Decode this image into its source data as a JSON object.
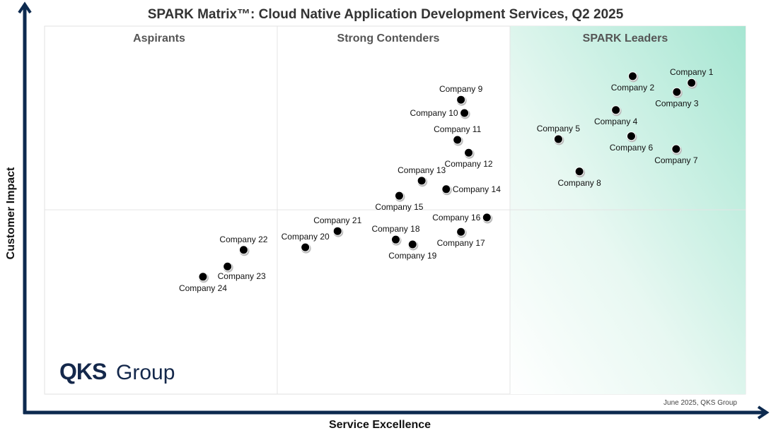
{
  "chart_data": {
    "type": "scatter",
    "title": "SPARK Matrix™: Cloud Native Application Development Services, Q2 2025",
    "xlabel": "Service Excellence",
    "ylabel": "Customer Impact",
    "xlim": [
      0,
      100
    ],
    "ylim": [
      0,
      100
    ],
    "grid": false,
    "quadrants": [
      "Aspirants",
      "Strong Contenders",
      "SPARK Leaders"
    ],
    "credit": "June 2025, QKS Group",
    "logo": "QKS Group",
    "colors": {
      "axis": "#0d2a4f",
      "leaders_fill": "#a6e6d2",
      "point": "#000000",
      "logo": "#14284b"
    },
    "points": [
      {
        "name": "Company 1",
        "x": 92.3,
        "y": 84.6,
        "label": "above"
      },
      {
        "name": "Company 2",
        "x": 83.9,
        "y": 86.4,
        "label": "below"
      },
      {
        "name": "Company 3",
        "x": 90.2,
        "y": 82.1,
        "label": "below"
      },
      {
        "name": "Company 4",
        "x": 81.5,
        "y": 77.2,
        "label": "below"
      },
      {
        "name": "Company 5",
        "x": 73.3,
        "y": 69.3,
        "label": "above"
      },
      {
        "name": "Company 6",
        "x": 83.7,
        "y": 70.1,
        "label": "below"
      },
      {
        "name": "Company 7",
        "x": 90.1,
        "y": 66.6,
        "label": "below"
      },
      {
        "name": "Company 8",
        "x": 76.3,
        "y": 60.5,
        "label": "below"
      },
      {
        "name": "Company 9",
        "x": 59.4,
        "y": 80.0,
        "label": "above"
      },
      {
        "name": "Company 10",
        "x": 59.9,
        "y": 76.4,
        "label": "left"
      },
      {
        "name": "Company 11",
        "x": 58.9,
        "y": 69.1,
        "label": "above"
      },
      {
        "name": "Company 12",
        "x": 60.5,
        "y": 65.6,
        "label": "below"
      },
      {
        "name": "Company 13",
        "x": 53.8,
        "y": 58.0,
        "label": "above"
      },
      {
        "name": "Company 14",
        "x": 57.3,
        "y": 55.7,
        "label": "right"
      },
      {
        "name": "Company 15",
        "x": 50.6,
        "y": 53.9,
        "label": "below"
      },
      {
        "name": "Company 16",
        "x": 63.1,
        "y": 48.0,
        "label": "left"
      },
      {
        "name": "Company 17",
        "x": 59.4,
        "y": 44.1,
        "label": "below"
      },
      {
        "name": "Company 18",
        "x": 50.1,
        "y": 42.0,
        "label": "above"
      },
      {
        "name": "Company 19",
        "x": 52.5,
        "y": 40.7,
        "label": "below"
      },
      {
        "name": "Company 20",
        "x": 37.2,
        "y": 39.9,
        "label": "above"
      },
      {
        "name": "Company 21",
        "x": 41.8,
        "y": 44.3,
        "label": "above"
      },
      {
        "name": "Company 22",
        "x": 28.4,
        "y": 39.2,
        "label": "above"
      },
      {
        "name": "Company 23",
        "x": 26.1,
        "y": 34.7,
        "label": "below-right"
      },
      {
        "name": "Company 24",
        "x": 22.6,
        "y": 31.9,
        "label": "below"
      }
    ]
  }
}
